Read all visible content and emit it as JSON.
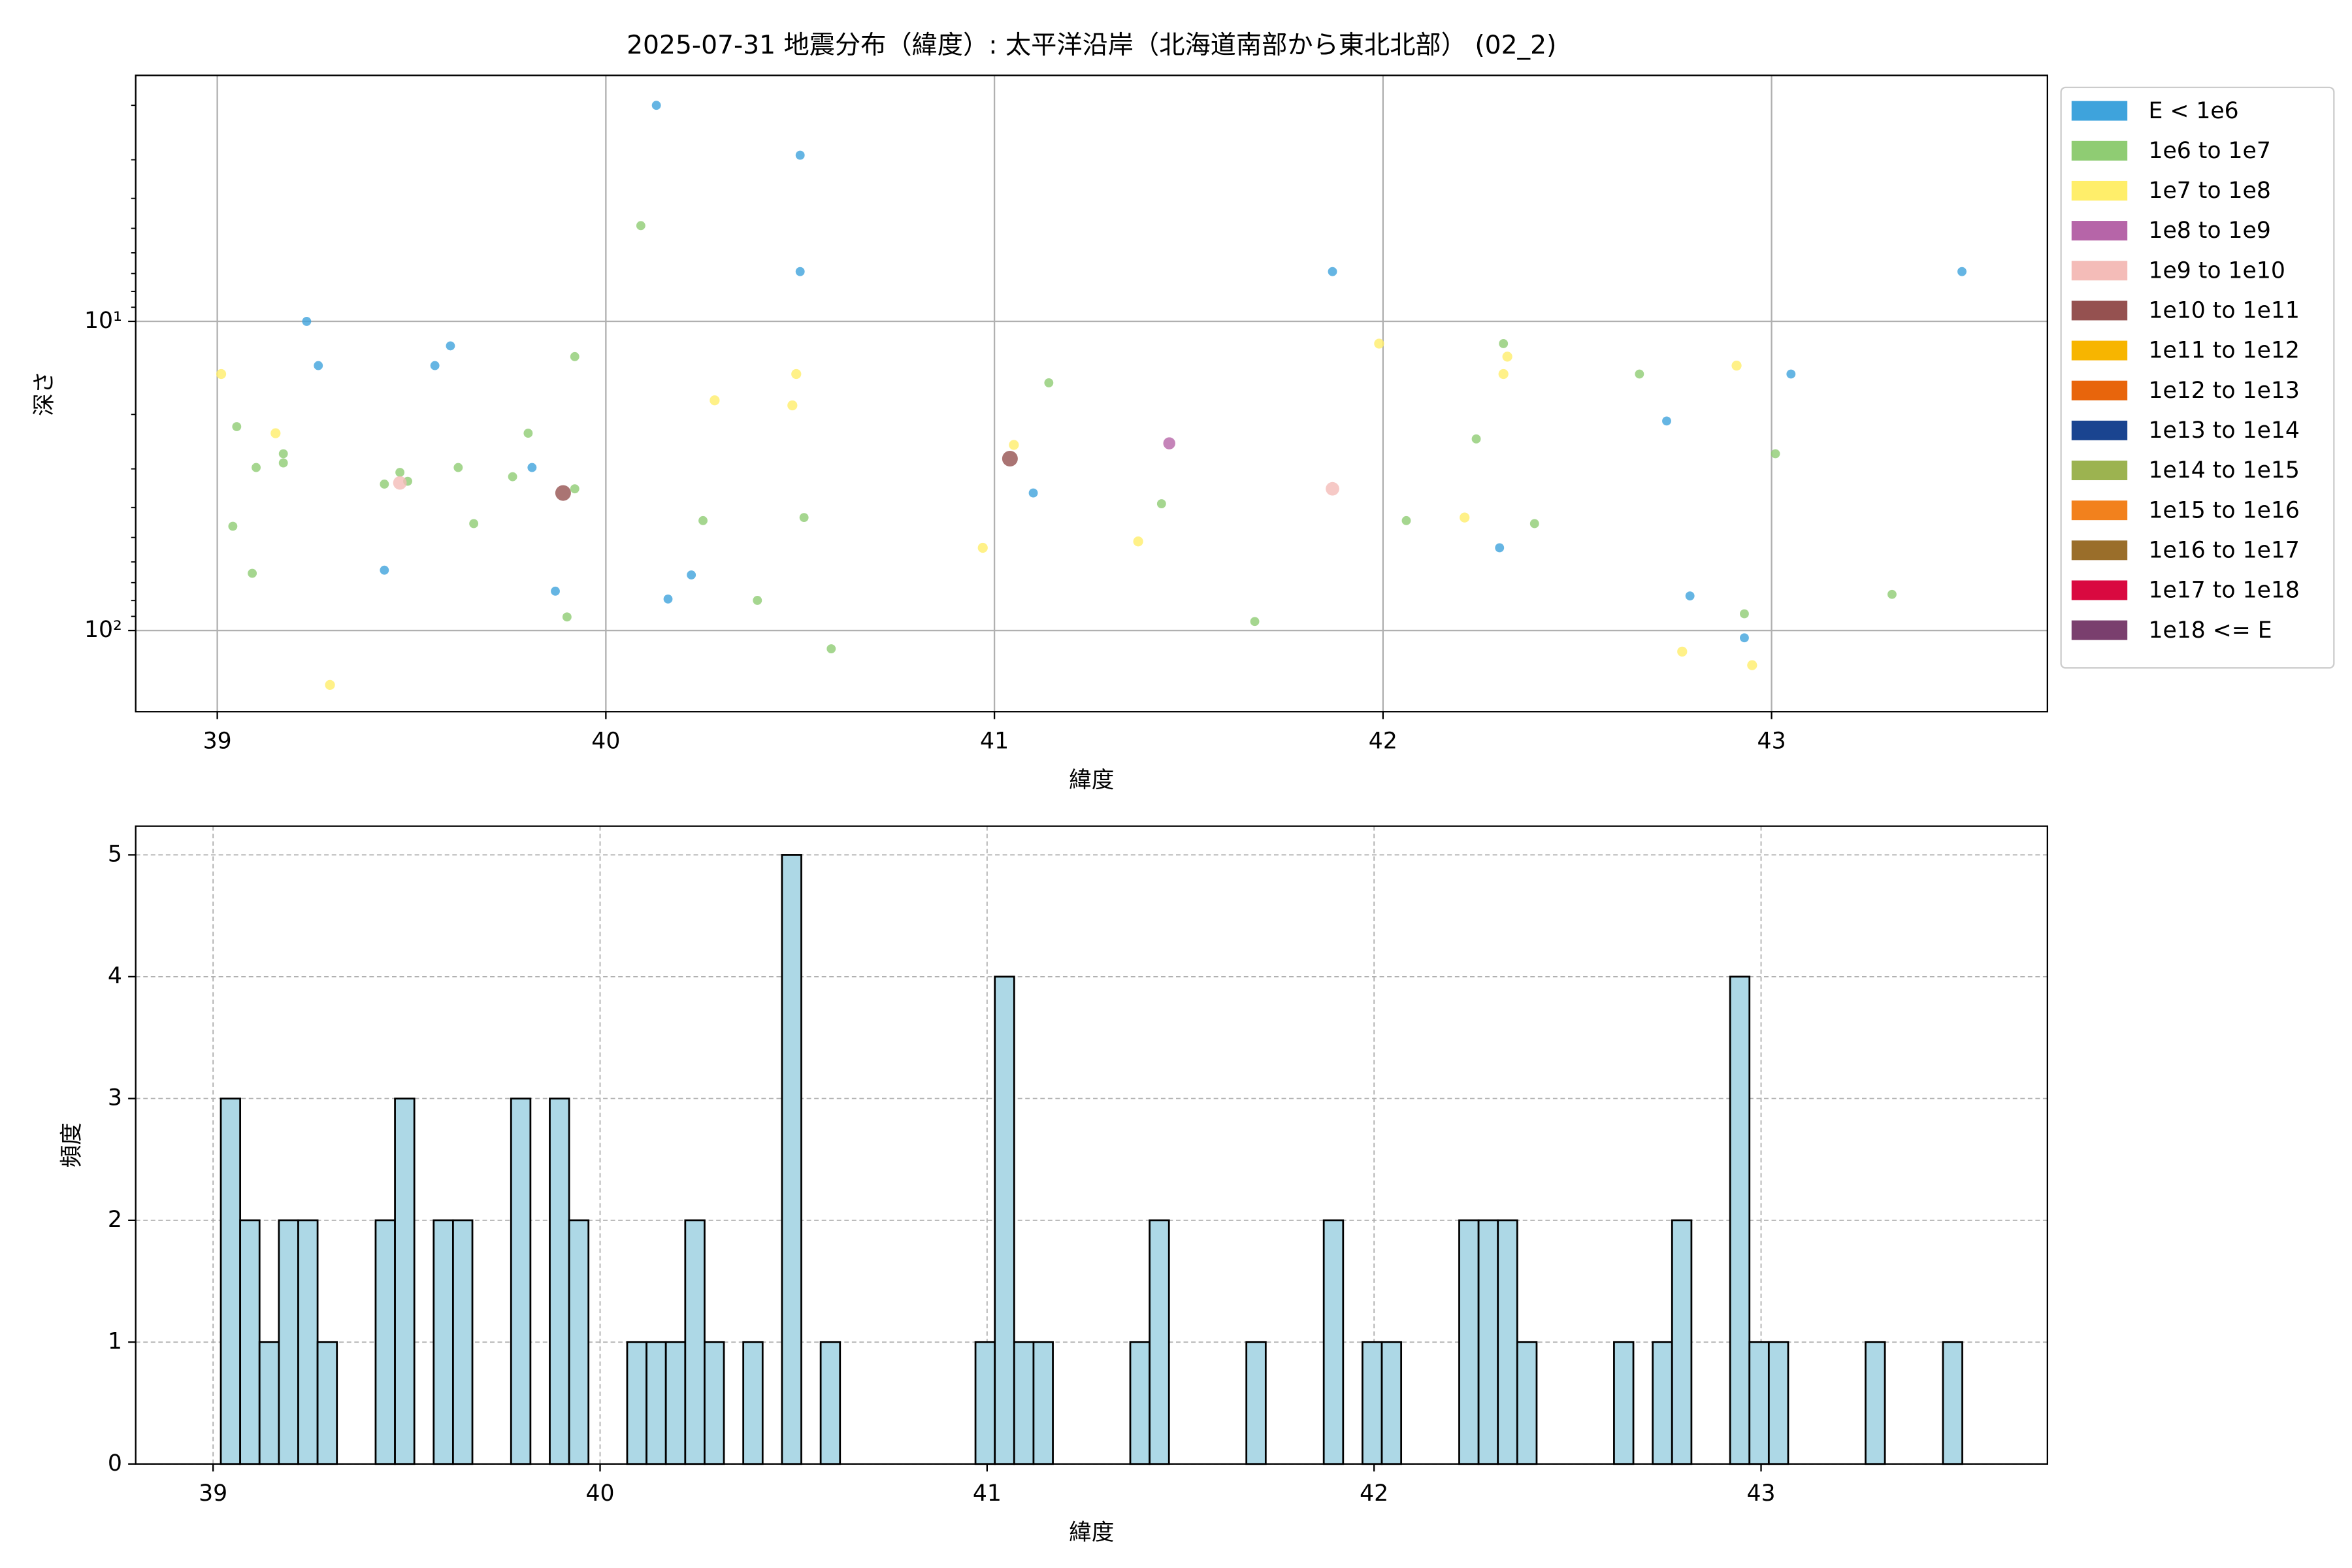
{
  "chart_data": [
    {
      "type": "scatter",
      "title": "2025-07-31 地震分布（緯度）: 太平洋沿岸（北海道南部から東北北部） (02_2)",
      "x_label": "緯度",
      "y_label": "深さ",
      "xlim": [
        38.79,
        43.71
      ],
      "xticks": [
        39,
        40,
        41,
        42,
        43
      ],
      "ylim": [
        1.6,
        183
      ],
      "yscale": "log",
      "y_inverted": true,
      "yticks": [
        {
          "value": 10,
          "label": "10¹"
        },
        {
          "value": 100,
          "label": "10²"
        }
      ],
      "yminorticks": [
        2,
        3,
        4,
        5,
        6,
        7,
        8,
        9,
        20,
        30,
        40,
        50,
        60,
        70,
        80,
        90
      ],
      "grid": true,
      "grid_style": "solid",
      "legend": "outside right",
      "series": [
        {
          "name": "E < 1e6",
          "color": "#3ea3dc",
          "marker_size": 3,
          "x": [
            40.13,
            40.5,
            40.5,
            41.87,
            43.49,
            39.23,
            39.26,
            39.56,
            39.6,
            39.81,
            39.43,
            39.87,
            40.16,
            40.22,
            41.1,
            42.3,
            42.73,
            43.05,
            42.79,
            42.93
          ],
          "values": [
            2.0,
            2.9,
            6.9,
            6.9,
            6.9,
            10,
            13.9,
            13.9,
            12.0,
            29.7,
            63.8,
            74.6,
            79.1,
            66.1,
            35.9,
            54.0,
            21.0,
            14.8,
            77.3,
            105.6
          ]
        },
        {
          "name": "1e6 to 1e7",
          "color": "#8fcc73",
          "marker_size": 3,
          "x": [
            40.09,
            39.05,
            39.04,
            39.1,
            39.09,
            39.17,
            39.17,
            39.43,
            39.47,
            39.49,
            39.62,
            39.66,
            39.76,
            39.8,
            39.92,
            39.92,
            39.9,
            40.25,
            40.39,
            40.51,
            40.58,
            41.14,
            41.43,
            41.67,
            42.06,
            42.24,
            42.31,
            42.39,
            42.66,
            43.01,
            42.93,
            43.31
          ],
          "values": [
            4.9,
            21.9,
            46.0,
            29.7,
            65.3,
            26.8,
            28.7,
            33.6,
            30.8,
            32.9,
            29.7,
            45.1,
            31.8,
            23.0,
            13.0,
            34.8,
            90.4,
            44.1,
            79.9,
            43.1,
            114.6,
            15.8,
            38.9,
            93.5,
            44.1,
            24.0,
            11.8,
            45.1,
            14.8,
            26.8,
            88.3,
            76.4
          ]
        },
        {
          "name": "1e7 to 1e8",
          "color": "#ffee6a",
          "marker_size": 3.3,
          "x": [
            39.01,
            39.15,
            39.29,
            40.28,
            40.48,
            40.49,
            40.97,
            41.05,
            41.37,
            41.99,
            42.21,
            42.31,
            42.32,
            42.91,
            42.77,
            42.95
          ],
          "values": [
            14.8,
            23.0,
            150,
            18.0,
            18.7,
            14.8,
            54.0,
            25.1,
            51.5,
            11.8,
            43.1,
            14.8,
            13.0,
            13.9,
            117.0,
            129.5
          ]
        },
        {
          "name": "1e8 to 1e9",
          "color": "#b665a8",
          "marker_size": 4,
          "x": [
            41.45
          ],
          "values": [
            24.8
          ]
        },
        {
          "name": "1e9 to 1e10",
          "color": "#f4bcb8",
          "marker_size": 4.5,
          "x": [
            41.87,
            39.47
          ],
          "values": [
            34.8,
            33.3
          ]
        },
        {
          "name": "1e10 to 1e11",
          "color": "#955150",
          "marker_size": 5.2,
          "x": [
            39.89,
            41.04
          ],
          "values": [
            35.9,
            27.8
          ]
        },
        {
          "name": "1e11 to 1e12",
          "color": "#f7b500",
          "marker_size": 5.5,
          "x": [],
          "values": []
        },
        {
          "name": "1e12 to 1e13",
          "color": "#e8650c",
          "marker_size": 6,
          "x": [],
          "values": []
        },
        {
          "name": "1e13 to 1e14",
          "color": "#1a4490",
          "marker_size": 6,
          "x": [],
          "values": []
        },
        {
          "name": "1e14 to 1e15",
          "color": "#9cb350",
          "marker_size": 6,
          "x": [],
          "values": []
        },
        {
          "name": "1e15 to 1e16",
          "color": "#f2811d",
          "marker_size": 6,
          "x": [],
          "values": []
        },
        {
          "name": "1e16 to 1e17",
          "color": "#9a6e2a",
          "marker_size": 6,
          "x": [],
          "values": []
        },
        {
          "name": "1e17 to 1e18",
          "color": "#d90940",
          "marker_size": 6,
          "x": [],
          "values": []
        },
        {
          "name": "1e18 <= E",
          "color": "#7a3f6e",
          "marker_size": 6,
          "x": [],
          "values": []
        }
      ]
    },
    {
      "type": "histogram",
      "x_label": "緯度",
      "y_label": "頻度",
      "xlim": [
        38.8,
        43.74
      ],
      "xticks": [
        39,
        40,
        41,
        42,
        43
      ],
      "ylim": [
        0,
        5.235
      ],
      "yticks": [
        0,
        1,
        2,
        3,
        4,
        5
      ],
      "grid": true,
      "grid_style": "dashed",
      "color": "#add8e6",
      "edge_color": "#000000",
      "bins": [
        39.02,
        39.07,
        39.12,
        39.17,
        39.22,
        39.27,
        39.32,
        39.37,
        39.42,
        39.47,
        39.52,
        39.57,
        39.62,
        39.67,
        39.72,
        39.77,
        39.82,
        39.87,
        39.92,
        39.97,
        40.02,
        40.07,
        40.12,
        40.17,
        40.22,
        40.27,
        40.32,
        40.37,
        40.42,
        40.47,
        40.52,
        40.57,
        40.62,
        40.67,
        40.72,
        40.77,
        40.82,
        40.87,
        40.92,
        40.97,
        41.02,
        41.07,
        41.12,
        41.17,
        41.22,
        41.27,
        41.32,
        41.37,
        41.42,
        41.47,
        41.52,
        41.57,
        41.62,
        41.67,
        41.72,
        41.77,
        41.82,
        41.87,
        41.92,
        41.97,
        42.02,
        42.07,
        42.12,
        42.17,
        42.22,
        42.27,
        42.32,
        42.37,
        42.42,
        42.47,
        42.52,
        42.57,
        42.62,
        42.67,
        42.72,
        42.77,
        42.82,
        42.87,
        42.92,
        42.97,
        43.02,
        43.07,
        43.12,
        43.17,
        43.22,
        43.27,
        43.32,
        43.37,
        43.42,
        43.47,
        43.52
      ],
      "values": [
        3,
        2,
        1,
        2,
        2,
        1,
        0,
        0,
        2,
        3,
        0,
        2,
        2,
        0,
        0,
        3,
        0,
        3,
        2,
        0,
        0,
        1,
        1,
        1,
        2,
        1,
        0,
        1,
        0,
        5,
        0,
        1,
        0,
        0,
        0,
        0,
        0,
        0,
        0,
        1,
        4,
        1,
        1,
        0,
        0,
        0,
        0,
        1,
        2,
        0,
        0,
        0,
        0,
        1,
        0,
        0,
        0,
        2,
        0,
        1,
        1,
        0,
        0,
        0,
        2,
        2,
        2,
        1,
        0,
        0,
        0,
        0,
        1,
        0,
        1,
        2,
        0,
        0,
        4,
        1,
        1,
        0,
        0,
        0,
        0,
        1,
        0,
        0,
        0,
        1
      ]
    }
  ]
}
